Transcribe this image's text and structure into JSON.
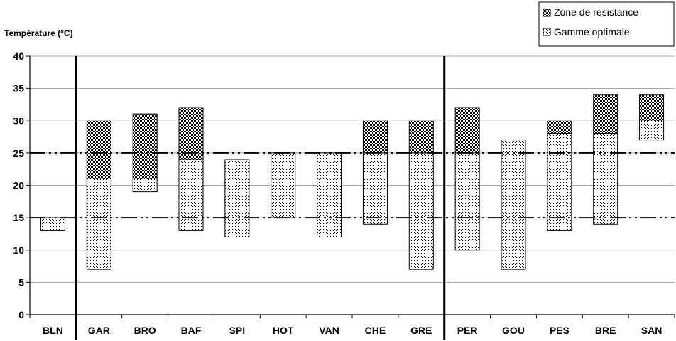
{
  "chart_data": {
    "type": "bar",
    "ylabel": "Température (°C)",
    "ylim": [
      0,
      40
    ],
    "yticks": [
      0,
      5,
      10,
      15,
      20,
      25,
      30,
      35,
      40
    ],
    "categories": [
      "BLN",
      "GAR",
      "BRO",
      "BAF",
      "SPI",
      "HOT",
      "VAN",
      "CHE",
      "GRE",
      "PER",
      "GOU",
      "PES",
      "BRE",
      "SAN"
    ],
    "series": [
      {
        "name": "Gamme optimale",
        "pattern": "sparse-dots",
        "low": [
          13,
          7,
          19,
          13,
          12,
          15,
          12,
          14,
          7,
          10,
          7,
          13,
          14,
          27
        ],
        "high": [
          15,
          21,
          21,
          24,
          24,
          25,
          25,
          25,
          25,
          25,
          27,
          28,
          28,
          30
        ]
      },
      {
        "name": "Zone de résistance",
        "pattern": "dense-dots",
        "low": [
          null,
          21,
          21,
          24,
          null,
          null,
          null,
          25,
          25,
          25,
          null,
          28,
          28,
          30
        ],
        "high": [
          null,
          30,
          31,
          32,
          null,
          null,
          null,
          30,
          30,
          32,
          null,
          30,
          34,
          34
        ]
      }
    ],
    "reference_lines": [
      15,
      25
    ],
    "group_separators_after": [
      "BLN",
      "GRE"
    ],
    "grid": true,
    "legend_position": "top-right",
    "colors": {
      "bar_fill": "#ffffff",
      "dots": "#000000",
      "grid": "#a6a6a6",
      "axis": "#000000"
    }
  }
}
